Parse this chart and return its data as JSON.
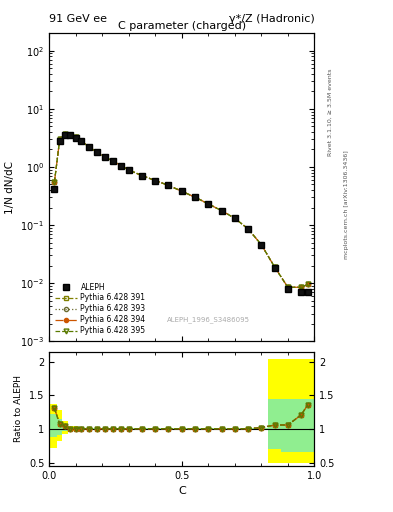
{
  "title_left": "91 GeV ee",
  "title_right": "γ*/Z (Hadronic)",
  "plot_title": "C parameter (charged)",
  "xlabel": "C",
  "ylabel_main": "1/N dN/dC",
  "ylabel_ratio": "Ratio to ALEPH",
  "right_label_top": "Rivet 3.1.10, ≥ 3.5M events",
  "right_label_bot": "mcplots.cern.ch [arXiv:1306.3436]",
  "watermark": "ALEPH_1996_S3486095",
  "c_values": [
    0.02,
    0.04,
    0.06,
    0.08,
    0.1,
    0.12,
    0.15,
    0.18,
    0.21,
    0.24,
    0.27,
    0.3,
    0.35,
    0.4,
    0.45,
    0.5,
    0.55,
    0.6,
    0.65,
    0.7,
    0.75,
    0.8,
    0.85,
    0.9,
    0.95,
    0.975
  ],
  "aleph_data": [
    0.42,
    2.8,
    3.5,
    3.5,
    3.2,
    2.8,
    2.2,
    1.8,
    1.5,
    1.25,
    1.05,
    0.88,
    0.7,
    0.58,
    0.48,
    0.38,
    0.3,
    0.23,
    0.175,
    0.13,
    0.085,
    0.045,
    0.018,
    0.008,
    0.007,
    0.007
  ],
  "pythia_391": [
    0.55,
    3.0,
    3.65,
    3.52,
    3.22,
    2.82,
    2.22,
    1.81,
    1.51,
    1.26,
    1.06,
    0.89,
    0.71,
    0.585,
    0.482,
    0.382,
    0.302,
    0.232,
    0.177,
    0.131,
    0.086,
    0.046,
    0.019,
    0.0085,
    0.0085,
    0.0095
  ],
  "pythia_393": [
    0.55,
    3.0,
    3.65,
    3.52,
    3.22,
    2.82,
    2.22,
    1.81,
    1.51,
    1.26,
    1.06,
    0.89,
    0.71,
    0.585,
    0.482,
    0.382,
    0.302,
    0.232,
    0.177,
    0.131,
    0.086,
    0.046,
    0.019,
    0.0085,
    0.0085,
    0.0095
  ],
  "pythia_394": [
    0.55,
    3.0,
    3.65,
    3.52,
    3.22,
    2.82,
    2.22,
    1.81,
    1.51,
    1.26,
    1.06,
    0.89,
    0.71,
    0.585,
    0.482,
    0.382,
    0.302,
    0.232,
    0.177,
    0.131,
    0.086,
    0.046,
    0.019,
    0.0085,
    0.0085,
    0.0095
  ],
  "pythia_395": [
    0.55,
    3.0,
    3.65,
    3.52,
    3.22,
    2.82,
    2.22,
    1.81,
    1.51,
    1.26,
    1.06,
    0.89,
    0.71,
    0.585,
    0.482,
    0.382,
    0.302,
    0.232,
    0.177,
    0.131,
    0.086,
    0.046,
    0.019,
    0.0085,
    0.0085,
    0.0095
  ],
  "ratio_391": [
    1.31,
    1.07,
    1.04,
    1.006,
    1.006,
    1.007,
    1.005,
    1.005,
    1.005,
    1.005,
    1.005,
    1.005,
    1.005,
    1.005,
    1.005,
    1.005,
    1.005,
    1.005,
    1.005,
    1.005,
    1.005,
    1.02,
    1.06,
    1.06,
    1.21,
    1.36
  ],
  "ratio_393": [
    1.31,
    1.07,
    1.04,
    1.006,
    1.006,
    1.007,
    1.005,
    1.005,
    1.005,
    1.005,
    1.005,
    1.005,
    1.005,
    1.005,
    1.005,
    1.005,
    1.005,
    1.005,
    1.005,
    1.005,
    1.005,
    1.02,
    1.06,
    1.06,
    1.21,
    1.36
  ],
  "ratio_394": [
    1.31,
    1.07,
    1.04,
    1.006,
    1.006,
    1.007,
    1.005,
    1.005,
    1.005,
    1.005,
    1.005,
    1.005,
    1.005,
    1.005,
    1.005,
    1.005,
    1.005,
    1.005,
    1.005,
    1.005,
    1.005,
    1.02,
    1.06,
    1.06,
    1.21,
    1.36
  ],
  "ratio_395": [
    1.31,
    1.07,
    1.04,
    1.006,
    1.006,
    1.007,
    1.005,
    1.005,
    1.005,
    1.005,
    1.005,
    1.005,
    1.005,
    1.005,
    1.005,
    1.005,
    1.005,
    1.005,
    1.005,
    1.005,
    1.005,
    1.02,
    1.06,
    1.06,
    1.21,
    1.36
  ],
  "bin_lo": [
    0.0,
    0.03,
    0.05,
    0.07,
    0.09,
    0.11,
    0.13,
    0.165,
    0.195,
    0.225,
    0.255,
    0.285,
    0.315,
    0.37,
    0.42,
    0.47,
    0.52,
    0.57,
    0.62,
    0.67,
    0.72,
    0.77,
    0.825,
    0.875,
    0.925,
    0.96
  ],
  "bin_hi": [
    0.03,
    0.05,
    0.07,
    0.09,
    0.11,
    0.13,
    0.165,
    0.195,
    0.225,
    0.255,
    0.285,
    0.315,
    0.37,
    0.42,
    0.47,
    0.52,
    0.57,
    0.62,
    0.67,
    0.72,
    0.77,
    0.825,
    0.875,
    0.925,
    0.96,
    1.0
  ],
  "band_yellow_lo": [
    0.72,
    0.82,
    0.93,
    0.97,
    0.97,
    0.975,
    0.982,
    0.985,
    0.985,
    0.985,
    0.985,
    0.985,
    0.985,
    0.985,
    0.985,
    0.985,
    0.985,
    0.985,
    0.985,
    0.985,
    0.985,
    0.985,
    0.5,
    0.5,
    0.5,
    0.5
  ],
  "band_yellow_hi": [
    1.38,
    1.28,
    1.12,
    1.05,
    1.04,
    1.03,
    1.02,
    1.018,
    1.018,
    1.018,
    1.018,
    1.018,
    1.018,
    1.018,
    1.018,
    1.018,
    1.018,
    1.018,
    1.018,
    1.018,
    1.018,
    1.018,
    2.05,
    2.05,
    2.05,
    2.05
  ],
  "band_green_lo": [
    0.88,
    0.91,
    0.97,
    0.99,
    0.99,
    0.992,
    0.993,
    0.994,
    0.994,
    0.994,
    0.994,
    0.994,
    0.994,
    0.994,
    0.994,
    0.994,
    0.994,
    0.994,
    0.994,
    0.994,
    0.994,
    0.994,
    0.7,
    0.65,
    0.65,
    0.65
  ],
  "band_green_hi": [
    1.22,
    1.15,
    1.05,
    1.022,
    1.022,
    1.018,
    1.015,
    1.013,
    1.013,
    1.013,
    1.013,
    1.013,
    1.013,
    1.013,
    1.013,
    1.013,
    1.013,
    1.013,
    1.013,
    1.013,
    1.013,
    1.013,
    1.45,
    1.45,
    1.45,
    1.45
  ],
  "color_band_yellow": "#ffff00",
  "color_band_green": "#90ee90",
  "ylim_main": [
    0.001,
    200
  ],
  "ylim_ratio": [
    0.45,
    2.15
  ],
  "xlim": [
    0.0,
    1.0
  ]
}
